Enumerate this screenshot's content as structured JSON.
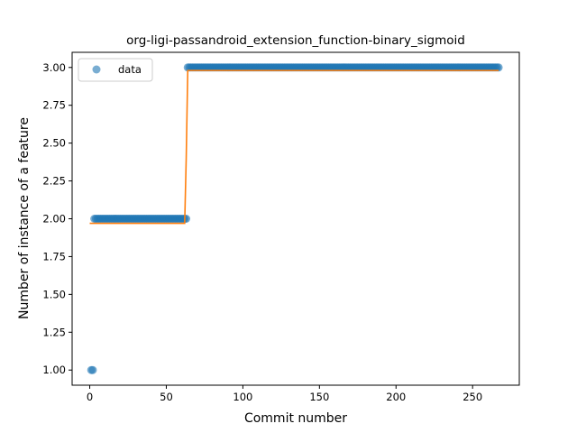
{
  "chart_data": {
    "type": "scatter",
    "title": "org-ligi-passandroid_extension_function-binary_sigmoid",
    "xlabel": "Commit number",
    "ylabel": "Number of instance of a feature",
    "xlim": [
      -11.5,
      280.5
    ],
    "ylim": [
      0.9,
      3.1
    ],
    "xticks": [
      0,
      50,
      100,
      150,
      200,
      250
    ],
    "yticks": [
      1.0,
      1.25,
      1.5,
      1.75,
      2.0,
      2.25,
      2.5,
      2.75,
      3.0
    ],
    "xtick_labels": [
      "0",
      "50",
      "100",
      "150",
      "200",
      "250"
    ],
    "ytick_labels": [
      "1.00",
      "1.25",
      "1.50",
      "1.75",
      "2.00",
      "2.25",
      "2.50",
      "2.75",
      "3.00"
    ],
    "legend": {
      "position": "top-left",
      "entries": [
        "data"
      ]
    },
    "colors": {
      "data": "#1f77b4",
      "fit": "#ff7f0e"
    },
    "series": [
      {
        "name": "data",
        "kind": "points",
        "segments": [
          {
            "x_start": 1,
            "x_end": 2,
            "y": 1.0
          },
          {
            "x_start": 3,
            "x_end": 63,
            "y": 2.0
          },
          {
            "x_start": 64,
            "x_end": 267,
            "y": 3.0
          }
        ]
      },
      {
        "kind": "line",
        "x": [
          0,
          62,
          63,
          64,
          267
        ],
        "y": [
          1.97,
          1.97,
          2.4,
          2.98,
          2.98
        ]
      }
    ]
  }
}
